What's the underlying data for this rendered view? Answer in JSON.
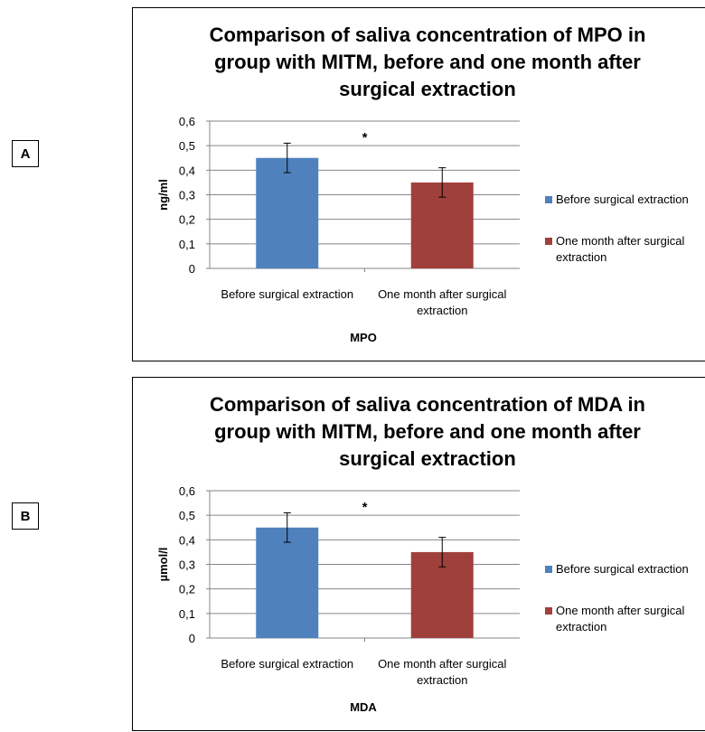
{
  "panels": [
    {
      "label": "A",
      "chart_data": {
        "type": "bar",
        "title": [
          "Comparison of saliva concentration of MPO  in",
          "group with MITM, before and one month after",
          "surgical extraction"
        ],
        "categories": [
          "Before surgical extraction",
          "One month after surgical extraction"
        ],
        "values": [
          0.45,
          0.35
        ],
        "errors": [
          0.06,
          0.06
        ],
        "colors": [
          "#4f81bd",
          "#a0403c"
        ],
        "xlabel": "MPO",
        "ylabel": "ng/ml",
        "ylim": [
          0,
          0.6
        ],
        "yticks": [
          "0",
          "0,1",
          "0,2",
          "0,3",
          "0,4",
          "0,5",
          "0,6"
        ],
        "annotation": "*",
        "legend": [
          "Before surgical extraction",
          "One month after surgical extraction"
        ],
        "legend_position": "right",
        "grid": true
      }
    },
    {
      "label": "B",
      "chart_data": {
        "type": "bar",
        "title": [
          "Comparison of saliva concentration of MDA  in",
          "group with MITM, before and one month after",
          "surgical extraction"
        ],
        "categories": [
          "Before surgical extraction",
          "One month after surgical extraction"
        ],
        "values": [
          0.45,
          0.35
        ],
        "errors": [
          0.06,
          0.06
        ],
        "colors": [
          "#4f81bd",
          "#a0403c"
        ],
        "xlabel": "MDA",
        "ylabel": "µmol/l",
        "ylim": [
          0,
          0.6
        ],
        "yticks": [
          "0",
          "0,1",
          "0,2",
          "0,3",
          "0,4",
          "0,5",
          "0,6"
        ],
        "annotation": "*",
        "legend": [
          "Before surgical extraction",
          "One month after surgical extraction"
        ],
        "legend_position": "right",
        "grid": true
      }
    }
  ]
}
